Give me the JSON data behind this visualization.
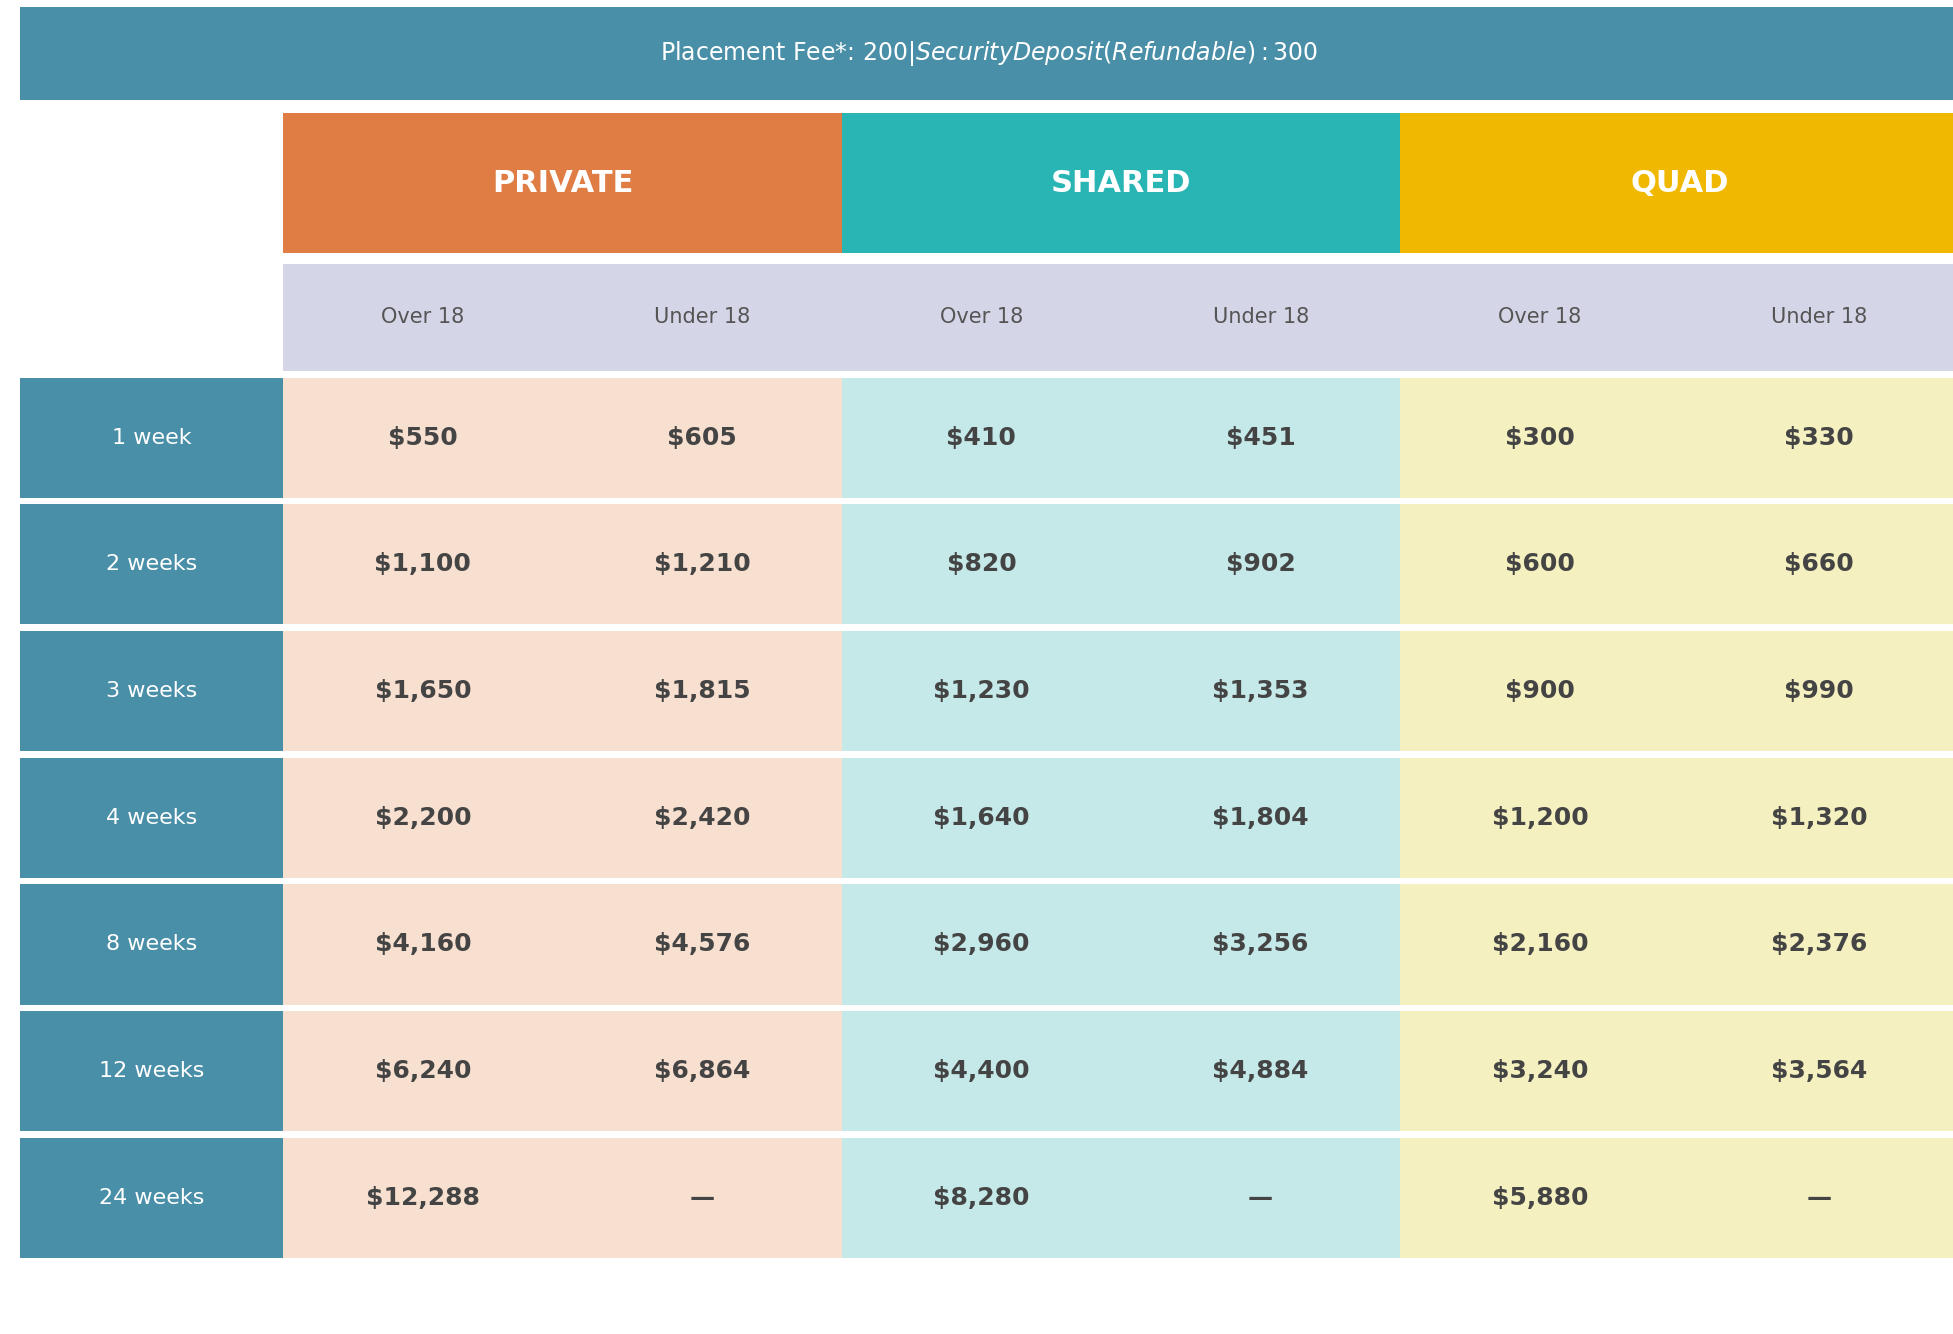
{
  "header_text": "Placement Fee*: $200  |  Security Deposit (Refundable): $300",
  "header_bg": "#4a8fa8",
  "header_text_color": "#ffffff",
  "bg_color": "#ffffff",
  "category_headers": [
    "PRIVATE",
    "SHARED",
    "QUAD"
  ],
  "category_colors": [
    "#e07d45",
    "#2ab5b5",
    "#f0b800"
  ],
  "subheader_bg": "#d5d5e8",
  "subheader_text_color": "#555555",
  "subheaders": [
    "Over 18",
    "Under 18",
    "Over 18",
    "Under 18",
    "Over 18",
    "Under 18"
  ],
  "row_labels": [
    "1 week",
    "2 weeks",
    "3 weeks",
    "4 weeks",
    "8 weeks",
    "12 weeks",
    "24 weeks"
  ],
  "row_label_bg": "#4a8fa8",
  "row_label_text_color": "#ffffff",
  "row_bg_private_over": "#f8e0d0",
  "row_bg_private_under": "#f8e0d0",
  "row_bg_shared_over": "#c5e8e8",
  "row_bg_shared_under": "#c5e8e8",
  "row_bg_quad_over": "#f5f0c0",
  "row_bg_quad_under": "#f5f0c0",
  "data": [
    [
      "$550",
      "$605",
      "$410",
      "$451",
      "$300",
      "$330"
    ],
    [
      "$1,100",
      "$1,210",
      "$820",
      "$902",
      "$600",
      "$660"
    ],
    [
      "$1,650",
      "$1,815",
      "$1,230",
      "$1,353",
      "$900",
      "$990"
    ],
    [
      "$2,200",
      "$2,420",
      "$1,640",
      "$1,804",
      "$1,200",
      "$1,320"
    ],
    [
      "$4,160",
      "$4,576",
      "$2,960",
      "$3,256",
      "$2,160",
      "$2,376"
    ],
    [
      "$6,240",
      "$6,864",
      "$4,400",
      "$4,884",
      "$3,240",
      "$3,564"
    ],
    [
      "$12,288",
      "—",
      "$8,280",
      "—",
      "$5,880",
      "—"
    ]
  ],
  "text_color": "#444444",
  "figsize": [
    19.53,
    13.34
  ],
  "dpi": 100
}
